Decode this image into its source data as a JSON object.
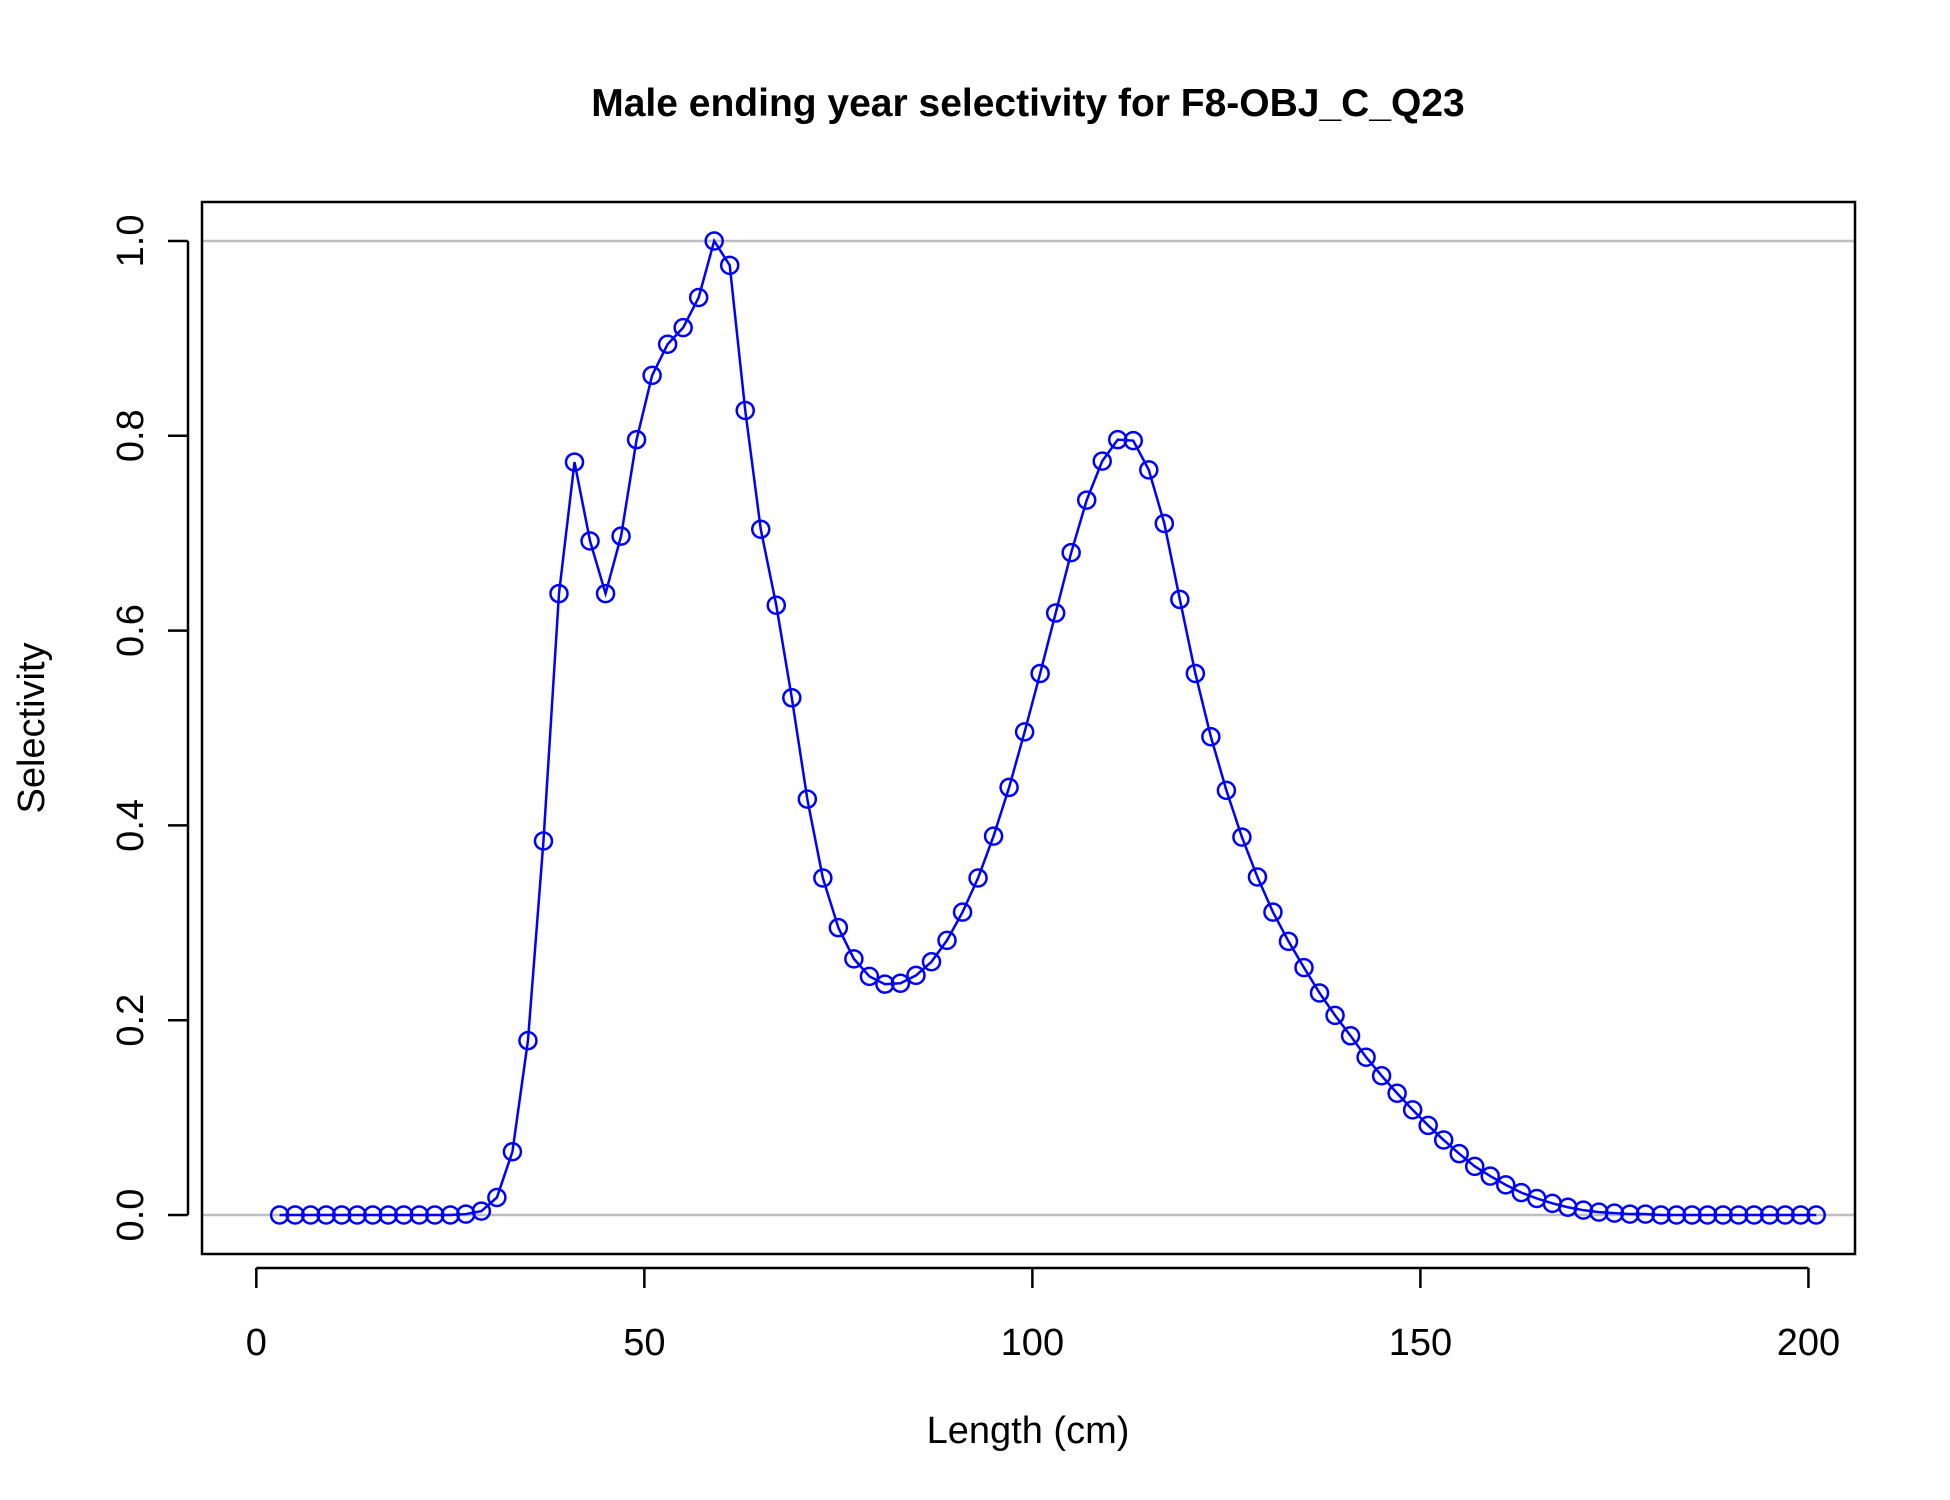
{
  "chart_data": {
    "type": "line",
    "title": "Male ending year selectivity for F8-OBJ_C_Q23",
    "xlabel": "Length (cm)",
    "ylabel": "Selectivity",
    "xlim": [
      -7,
      206
    ],
    "ylim": [
      -0.04,
      1.04
    ],
    "xticks": [
      0,
      50,
      100,
      150,
      200
    ],
    "yticks": [
      0.0,
      0.2,
      0.4,
      0.6,
      0.8,
      1.0
    ],
    "xtick_labels": [
      "0",
      "50",
      "100",
      "150",
      "200"
    ],
    "ytick_labels": [
      "0.0",
      "0.2",
      "0.4",
      "0.6",
      "0.8",
      "1.0"
    ],
    "reference_lines": [
      0,
      1
    ],
    "grid": false,
    "series_color": "#0000ff",
    "reference_color": "#bebebe",
    "series": [
      {
        "x": [
          3,
          5,
          7,
          9,
          11,
          13,
          15,
          17,
          19,
          21,
          23,
          25,
          27,
          29,
          31,
          33,
          35,
          37,
          39,
          41,
          43,
          45,
          47,
          49,
          51,
          53,
          55,
          57,
          59,
          61,
          63,
          65,
          67,
          69,
          71,
          73,
          75,
          77,
          79,
          81,
          83,
          85,
          87,
          89,
          91,
          93,
          95,
          97,
          99,
          101,
          103,
          105,
          107,
          109,
          111,
          113,
          115,
          117,
          119,
          121,
          123,
          125,
          127,
          129,
          131,
          133,
          135,
          137,
          139,
          141,
          143,
          145,
          147,
          149,
          151,
          153,
          155,
          157,
          159,
          161,
          163,
          165,
          167,
          169,
          171,
          173,
          175,
          177,
          179,
          181,
          183,
          185,
          187,
          189,
          191,
          193,
          195,
          197,
          199,
          201
        ],
        "values": [
          0.0,
          0.0,
          0.0,
          0.0,
          0.0,
          0.0,
          0.0,
          0.0,
          0.0,
          0.0,
          0.0,
          0.0,
          0.001,
          0.004,
          0.018,
          0.065,
          0.179,
          0.384,
          0.638,
          0.773,
          0.692,
          0.638,
          0.697,
          0.796,
          0.862,
          0.894,
          0.911,
          0.942,
          1.0,
          0.975,
          0.826,
          0.704,
          0.626,
          0.531,
          0.427,
          0.346,
          0.295,
          0.263,
          0.245,
          0.237,
          0.238,
          0.246,
          0.26,
          0.282,
          0.311,
          0.346,
          0.389,
          0.439,
          0.496,
          0.556,
          0.618,
          0.68,
          0.734,
          0.774,
          0.796,
          0.795,
          0.765,
          0.71,
          0.632,
          0.556,
          0.491,
          0.436,
          0.388,
          0.347,
          0.311,
          0.281,
          0.254,
          0.228,
          0.205,
          0.184,
          0.162,
          0.143,
          0.125,
          0.108,
          0.092,
          0.077,
          0.063,
          0.05,
          0.04,
          0.031,
          0.023,
          0.017,
          0.012,
          0.008,
          0.005,
          0.003,
          0.002,
          0.001,
          0.001,
          0.0,
          0.0,
          0.0,
          0.0,
          0.0,
          0.0,
          0.0,
          0.0,
          0.0,
          0.0,
          0.0
        ]
      }
    ]
  }
}
